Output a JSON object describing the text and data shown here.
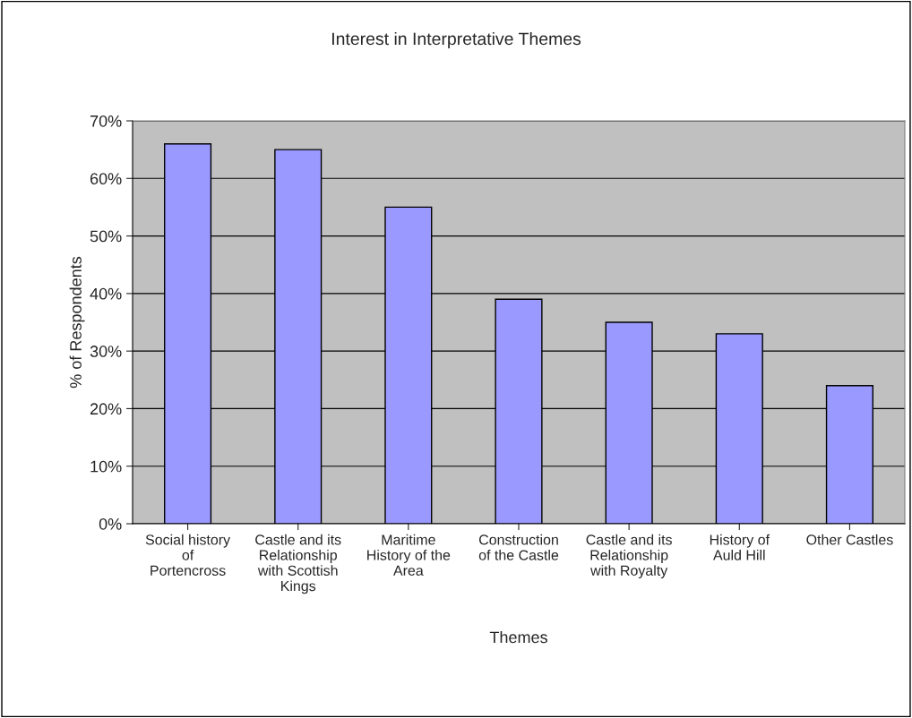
{
  "chart_data": {
    "type": "bar",
    "title": "Interest in Interpretative Themes",
    "xlabel": "Themes",
    "ylabel": "% of Respondents",
    "categories": [
      "Social history\nof\nPortencross",
      "Castle and its\nRelationship\nwith Scottish\nKings",
      "Maritime\nHistory of the\nArea",
      "Construction\nof the Castle",
      "Castle and its\nRelationship\nwith Royalty",
      "History of\nAuld Hill",
      "Other Castles"
    ],
    "values": [
      66,
      65,
      55,
      39,
      35,
      33,
      24
    ],
    "color": "#9999ff",
    "ylim": [
      0,
      70
    ],
    "yticks": [
      {
        "value": 0,
        "label": "0%"
      },
      {
        "value": 10,
        "label": "10%"
      },
      {
        "value": 20,
        "label": "20%"
      },
      {
        "value": 30,
        "label": "30%"
      },
      {
        "value": 40,
        "label": "40%"
      },
      {
        "value": 50,
        "label": "50%"
      },
      {
        "value": 60,
        "label": "60%"
      },
      {
        "value": 70,
        "label": "70%"
      }
    ],
    "grid": "y",
    "legend": false
  }
}
